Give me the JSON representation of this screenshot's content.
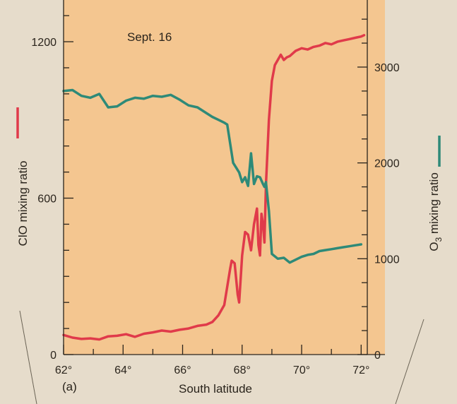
{
  "chart_data": {
    "type": "line",
    "annotation": "Sept. 16",
    "panel_label": "(a)",
    "xlabel": "South latitude",
    "ylabel_left": "ClO mixing ratio",
    "ylabel_right_prefix": "O",
    "ylabel_right_sub": "3",
    "ylabel_right_suffix": " mixing ratio",
    "xlim": [
      62,
      72.8
    ],
    "ylim_left": [
      0,
      1360
    ],
    "ylim_right": [
      0,
      3700
    ],
    "x_ticks": [
      62,
      64,
      66,
      68,
      70,
      72
    ],
    "x_tick_labels": [
      "62°",
      "64°",
      "66°",
      "68°",
      "70°",
      "72°"
    ],
    "y_left_ticks": [
      0,
      600,
      1200
    ],
    "y_left_tick_labels": [
      "0",
      "600",
      "1200"
    ],
    "y_right_ticks": [
      0,
      1000,
      2000,
      3000
    ],
    "y_right_tick_labels": [
      "0",
      "1000",
      "2000",
      "3000"
    ],
    "grid": false,
    "series": [
      {
        "name": "ClO mixing ratio",
        "axis": "left",
        "color": "#e03a4a",
        "x": [
          62.0,
          62.3,
          62.6,
          62.9,
          63.2,
          63.5,
          63.8,
          64.1,
          64.4,
          64.7,
          65.0,
          65.3,
          65.6,
          65.9,
          66.2,
          66.5,
          66.8,
          67.0,
          67.2,
          67.4,
          67.5,
          67.6,
          67.65,
          67.75,
          67.85,
          67.9,
          68.0,
          68.1,
          68.2,
          68.3,
          68.4,
          68.5,
          68.55,
          68.6,
          68.65,
          68.7,
          68.75,
          68.8,
          68.9,
          69.0,
          69.1,
          69.2,
          69.3,
          69.4,
          69.5,
          69.6,
          69.7,
          69.8,
          70.0,
          70.2,
          70.4,
          70.6,
          70.8,
          71.0,
          71.2,
          71.4,
          71.6,
          71.8,
          72.0,
          72.1
        ],
        "y": [
          75,
          65,
          60,
          62,
          58,
          70,
          72,
          78,
          68,
          80,
          85,
          92,
          88,
          95,
          100,
          110,
          115,
          125,
          150,
          190,
          260,
          330,
          360,
          350,
          230,
          200,
          380,
          470,
          460,
          400,
          500,
          560,
          420,
          380,
          540,
          500,
          430,
          650,
          900,
          1050,
          1110,
          1130,
          1150,
          1130,
          1140,
          1145,
          1155,
          1165,
          1175,
          1170,
          1180,
          1185,
          1195,
          1190,
          1200,
          1205,
          1210,
          1215,
          1220,
          1225
        ]
      },
      {
        "name": "O3 mixing ratio",
        "axis": "right",
        "color": "#2e8a78",
        "x": [
          62.0,
          62.3,
          62.6,
          62.9,
          63.2,
          63.5,
          63.8,
          64.1,
          64.4,
          64.7,
          65.0,
          65.3,
          65.6,
          65.9,
          66.2,
          66.5,
          66.8,
          67.0,
          67.2,
          67.4,
          67.5,
          67.6,
          67.7,
          67.8,
          67.9,
          68.0,
          68.1,
          68.2,
          68.3,
          68.4,
          68.5,
          68.6,
          68.7,
          68.75,
          68.8,
          68.85,
          68.9,
          69.0,
          69.2,
          69.4,
          69.6,
          69.8,
          70.0,
          70.2,
          70.4,
          70.6,
          70.8,
          71.0,
          71.2,
          71.4,
          71.6,
          71.8,
          72.0
        ],
        "y": [
          2750,
          2760,
          2700,
          2680,
          2720,
          2580,
          2590,
          2650,
          2680,
          2670,
          2700,
          2690,
          2710,
          2660,
          2600,
          2580,
          2520,
          2480,
          2450,
          2420,
          2400,
          2200,
          2000,
          1950,
          1900,
          1800,
          1850,
          1760,
          2100,
          1780,
          1860,
          1850,
          1780,
          1750,
          1800,
          1650,
          1500,
          1050,
          1000,
          1010,
          960,
          990,
          1020,
          1040,
          1050,
          1080,
          1090,
          1100,
          1110,
          1120,
          1130,
          1140,
          1150
        ]
      }
    ]
  }
}
